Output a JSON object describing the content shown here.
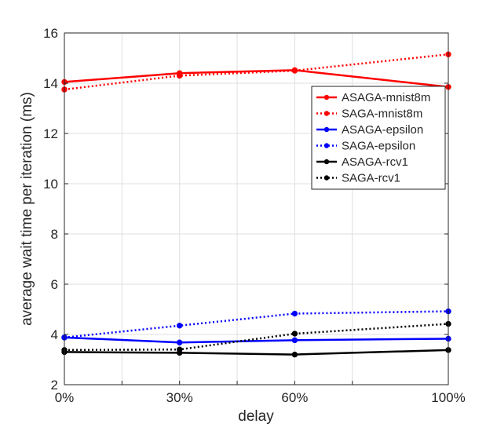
{
  "chart_data": {
    "type": "line",
    "title": "",
    "xlabel": "delay",
    "ylabel": "average wait time per iteration (ms)",
    "categories": [
      "0%",
      "30%",
      "60%",
      "100%"
    ],
    "x": [
      0,
      30,
      60,
      100
    ],
    "xlim": [
      0,
      100
    ],
    "ylim": [
      2,
      16
    ],
    "yticks": [
      2,
      4,
      6,
      8,
      10,
      12,
      14,
      16
    ],
    "grid": true,
    "legend_position": "top-right",
    "series": [
      {
        "name": "ASAGA-mnist8m",
        "color": "#ff0000",
        "style": "solid",
        "values": [
          14.05,
          14.4,
          14.52,
          13.85
        ]
      },
      {
        "name": "SAGA-mnist8m",
        "color": "#ff0000",
        "style": "dotted",
        "values": [
          13.75,
          14.3,
          14.5,
          15.15
        ]
      },
      {
        "name": "ASAGA-epsilon",
        "color": "#0000ff",
        "style": "solid",
        "values": [
          3.88,
          3.68,
          3.77,
          3.83
        ]
      },
      {
        "name": "SAGA-epsilon",
        "color": "#0000ff",
        "style": "dotted",
        "values": [
          3.88,
          4.35,
          4.83,
          4.92
        ]
      },
      {
        "name": "ASAGA-rcv1",
        "color": "#000000",
        "style": "solid",
        "values": [
          3.3,
          3.27,
          3.2,
          3.38
        ]
      },
      {
        "name": "SAGA-rcv1",
        "color": "#000000",
        "style": "dotted",
        "values": [
          3.38,
          3.4,
          4.03,
          4.42
        ]
      }
    ]
  }
}
